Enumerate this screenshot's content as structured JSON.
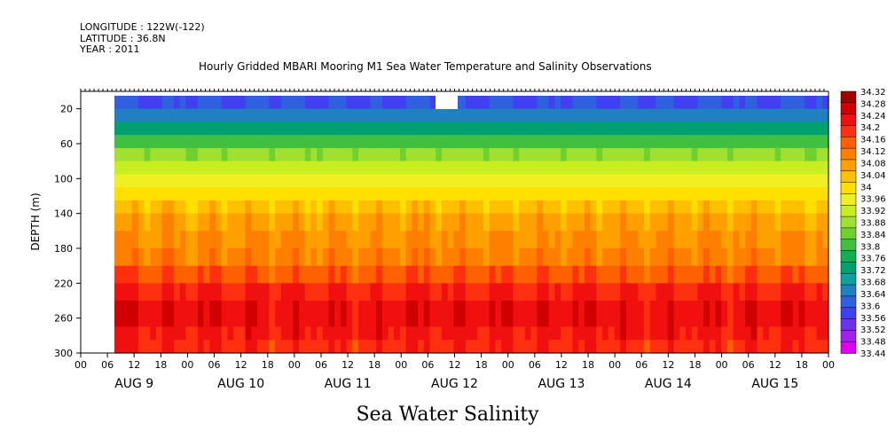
{
  "header": {
    "longitude": "LONGITUDE : 122W(-122)",
    "latitude": "LATITUDE : 36.8N",
    "year": "YEAR : 2011"
  },
  "chart_data": {
    "type": "heatmap",
    "title": "Hourly Gridded MBARI Mooring M1 Sea Water Temperature and Salinity Observations",
    "subtitle": "Sea Water Salinity",
    "ylabel": "DEPTH (m)",
    "ylim": [
      300,
      0
    ],
    "y_ticks": [
      20,
      60,
      100,
      140,
      180,
      220,
      260,
      300
    ],
    "x_hour_ticks": [
      "00",
      "06",
      "12",
      "18",
      "00",
      "06",
      "12",
      "18",
      "00",
      "06",
      "12",
      "18",
      "00",
      "06",
      "12",
      "18",
      "00",
      "06",
      "12",
      "18",
      "00",
      "06",
      "12",
      "18",
      "00",
      "06",
      "12",
      "18",
      "00"
    ],
    "x_day_labels": [
      "AUG  9",
      "AUG 10",
      "AUG 11",
      "AUG 12",
      "AUG 13",
      "AUG 14",
      "AUG 15"
    ],
    "colorbar": {
      "min": 33.44,
      "max": 34.32,
      "labels": [
        "34.32",
        "34.28",
        "34.24",
        "34.2",
        "34.16",
        "34.12",
        "34.08",
        "34.04",
        "34",
        "33.96",
        "33.92",
        "33.88",
        "33.84",
        "33.8",
        "33.76",
        "33.72",
        "33.68",
        "33.64",
        "33.6",
        "33.56",
        "33.52",
        "33.48",
        "33.44"
      ],
      "colors": [
        "#e000f0",
        "#a020f0",
        "#7030f0",
        "#4040f0",
        "#3060e0",
        "#2080c0",
        "#10a0a0",
        "#00a070",
        "#10b050",
        "#40c040",
        "#70d030",
        "#a0e030",
        "#c8ee20",
        "#f0f020",
        "#ffe000",
        "#ffc000",
        "#ffa000",
        "#ff8000",
        "#ff6000",
        "#ff3010",
        "#f01010",
        "#d00000",
        "#a00000"
      ]
    },
    "profile": [
      {
        "depth": 5,
        "value": 33.56
      },
      {
        "depth": 20,
        "value": 33.6
      },
      {
        "depth": 35,
        "value": 33.68
      },
      {
        "depth": 50,
        "value": 33.76
      },
      {
        "depth": 65,
        "value": 33.84
      },
      {
        "depth": 80,
        "value": 33.9
      },
      {
        "depth": 95,
        "value": 33.94
      },
      {
        "depth": 110,
        "value": 33.98
      },
      {
        "depth": 125,
        "value": 34.02
      },
      {
        "depth": 140,
        "value": 34.06
      },
      {
        "depth": 160,
        "value": 34.1
      },
      {
        "depth": 180,
        "value": 34.1
      },
      {
        "depth": 200,
        "value": 34.14
      },
      {
        "depth": 220,
        "value": 34.2
      },
      {
        "depth": 240,
        "value": 34.24
      },
      {
        "depth": 255,
        "value": 34.26
      },
      {
        "depth": 270,
        "value": 34.24
      },
      {
        "depth": 285,
        "value": 34.22
      },
      {
        "depth": 300,
        "value": 34.2
      }
    ]
  }
}
